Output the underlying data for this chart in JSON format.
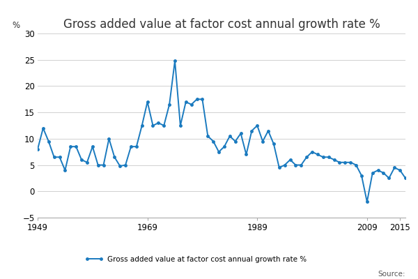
{
  "title": "Gross added value at factor cost annual growth rate %",
  "ylabel": "%",
  "source_text": "Source:",
  "legend_label": "Gross added value at factor cost annual growth rate %",
  "line_color": "#1a7abf",
  "marker": "o",
  "marker_size": 2.5,
  "line_width": 1.4,
  "ylim": [
    -5,
    30
  ],
  "yticks": [
    -5,
    0,
    5,
    10,
    15,
    20,
    25,
    30
  ],
  "xticks": [
    1949,
    1969,
    1989,
    2009,
    2015
  ],
  "background_color": "#ffffff",
  "grid_color": "#d0d0d0",
  "title_fontsize": 12,
  "years": [
    1949,
    1950,
    1951,
    1952,
    1953,
    1954,
    1955,
    1956,
    1957,
    1958,
    1959,
    1960,
    1961,
    1962,
    1963,
    1964,
    1965,
    1966,
    1967,
    1968,
    1969,
    1970,
    1971,
    1972,
    1973,
    1974,
    1975,
    1976,
    1977,
    1978,
    1979,
    1980,
    1981,
    1982,
    1983,
    1984,
    1985,
    1986,
    1987,
    1988,
    1989,
    1990,
    1991,
    1992,
    1993,
    1994,
    1995,
    1996,
    1997,
    1998,
    1999,
    2000,
    2001,
    2002,
    2003,
    2004,
    2005,
    2006,
    2007,
    2008,
    2009,
    2010,
    2011,
    2012,
    2013,
    2014,
    2015,
    2016
  ],
  "values": [
    8.0,
    12.0,
    9.5,
    6.5,
    6.5,
    4.0,
    8.5,
    8.5,
    6.0,
    5.5,
    8.5,
    5.0,
    5.0,
    10.0,
    6.5,
    4.8,
    5.0,
    8.5,
    8.5,
    12.5,
    17.0,
    12.5,
    13.0,
    12.5,
    16.5,
    24.8,
    12.5,
    17.0,
    16.5,
    17.5,
    17.5,
    10.5,
    9.5,
    7.5,
    8.5,
    10.5,
    9.5,
    11.0,
    7.0,
    11.5,
    12.5,
    9.5,
    11.5,
    9.0,
    4.5,
    5.0,
    6.0,
    5.0,
    5.0,
    6.5,
    7.5,
    7.0,
    6.5,
    6.5,
    6.0,
    5.5,
    5.5,
    5.5,
    5.0,
    3.0,
    -2.0,
    3.5,
    4.0,
    3.5,
    2.5,
    4.5,
    4.0,
    2.5
  ]
}
